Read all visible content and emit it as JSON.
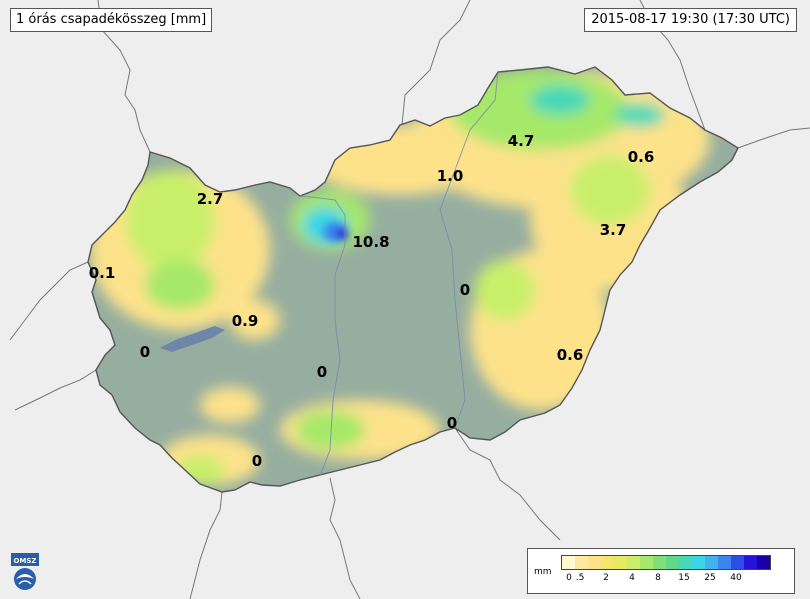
{
  "header": {
    "title": "1 órás csapadékösszeg [mm]",
    "timestamp": "2015-08-17 19:30 (17:30 UTC)"
  },
  "values": [
    {
      "label": "2.7"
    },
    {
      "label": "0.1"
    },
    {
      "label": "10.8"
    },
    {
      "label": "1.0"
    },
    {
      "label": "4.7"
    },
    {
      "label": "0.6"
    },
    {
      "label": "3.7"
    },
    {
      "label": "0"
    },
    {
      "label": "0.9"
    },
    {
      "label": "0"
    },
    {
      "label": "0"
    },
    {
      "label": "0.6"
    },
    {
      "label": "0"
    },
    {
      "label": "0"
    }
  ],
  "legend": {
    "unit": "mm",
    "ticks": [
      "0",
      ".5",
      "2",
      "4",
      "8",
      "15",
      "25",
      "40"
    ],
    "colors": [
      "#fff8d0",
      "#ffe8a0",
      "#fde28a",
      "#f4e570",
      "#e6ea60",
      "#c9ef6a",
      "#a6e86a",
      "#80df7a",
      "#5fd88a",
      "#47d8b8",
      "#39d6e8",
      "#41b2ee",
      "#3a86ec",
      "#2d4ee6",
      "#2612d8",
      "#1b00a8"
    ]
  },
  "colors": {
    "country_base": "#8fa79a",
    "border": "#555555",
    "outside": "#eeeeee"
  },
  "logo_text": "OMSZ"
}
